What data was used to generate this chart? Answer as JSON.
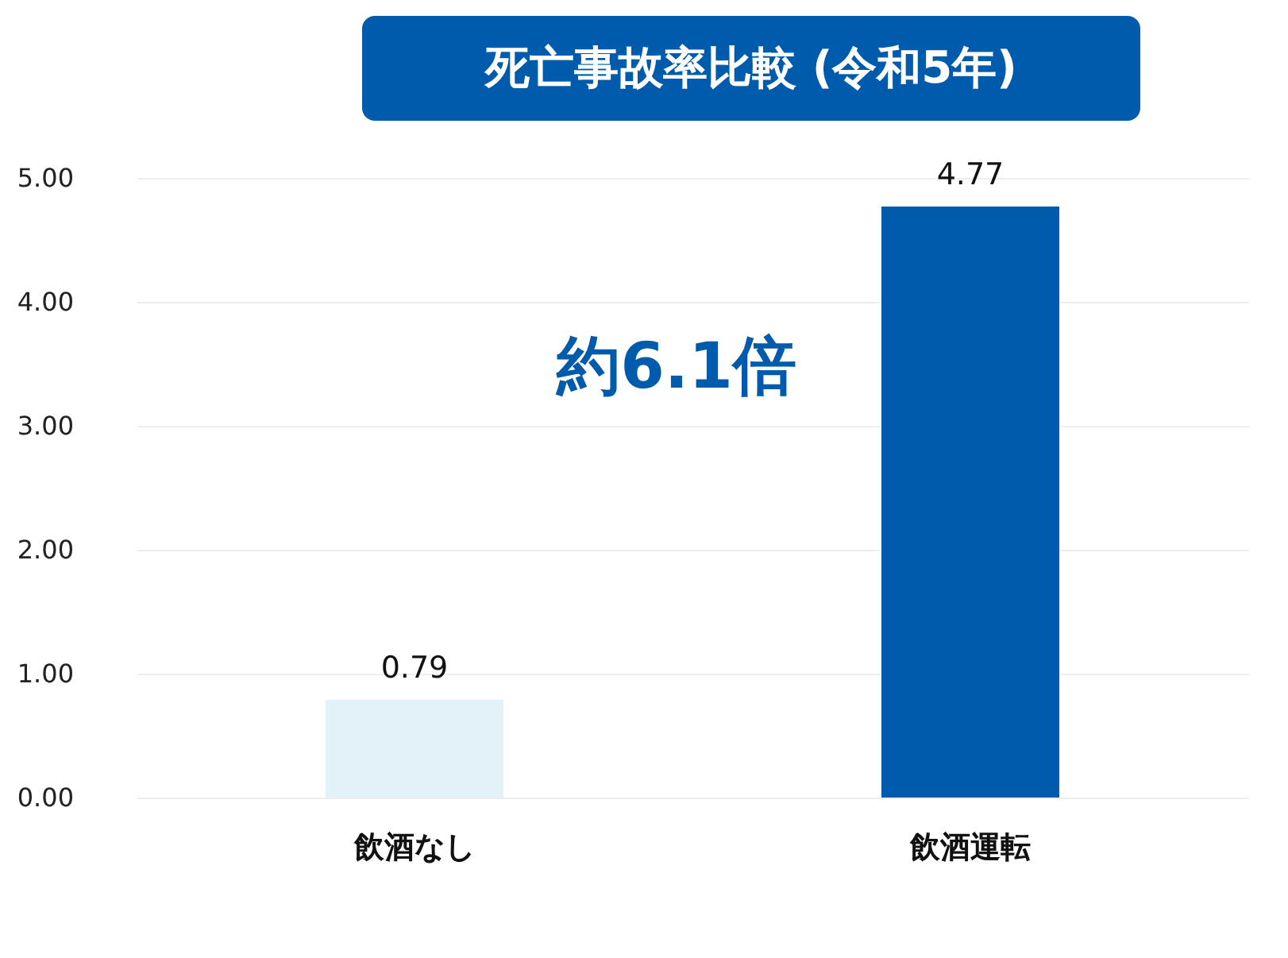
{
  "chart_data": {
    "type": "bar",
    "title": "死亡事故率比較 (令和5年)",
    "categories": [
      "飲酒なし",
      "飲酒運転"
    ],
    "values": [
      0.79,
      4.77
    ],
    "colors": [
      "#e3f1f8",
      "#005bac"
    ],
    "ylim": [
      0,
      5
    ],
    "yticks": [
      {
        "value": 0,
        "label": "0.00"
      },
      {
        "value": 1,
        "label": "1.00"
      },
      {
        "value": 2,
        "label": "2.00"
      },
      {
        "value": 3,
        "label": "3.00"
      },
      {
        "value": 4,
        "label": "4.00"
      },
      {
        "value": 5,
        "label": "5.00"
      }
    ],
    "grid": "y",
    "data_labels": true,
    "legend": false,
    "annotations": [
      "約6.1倍"
    ]
  }
}
